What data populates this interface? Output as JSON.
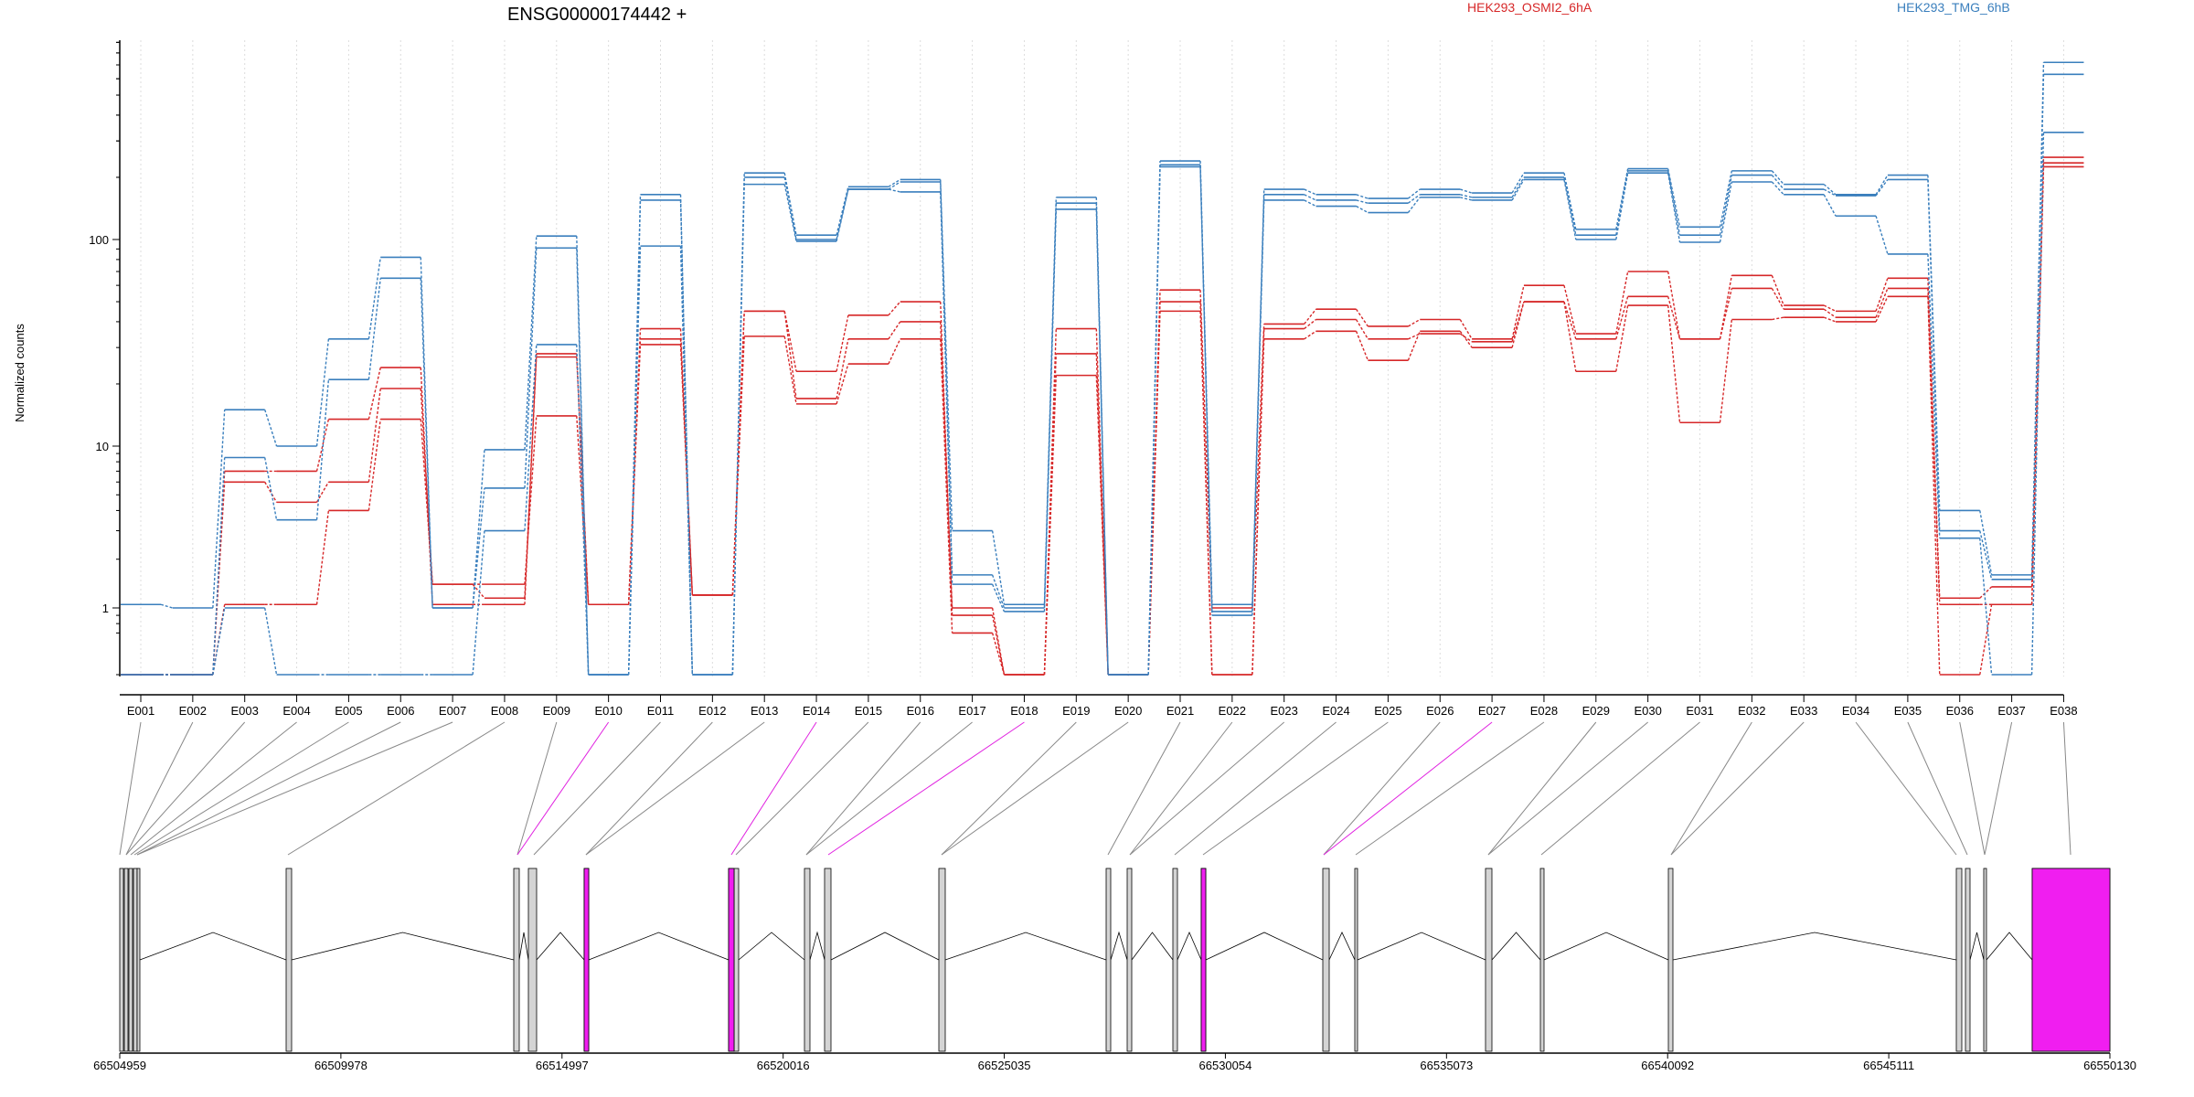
{
  "chart_data": {
    "type": "line",
    "title": "ENSG00000174442 +",
    "ylabel": "Normalized counts",
    "y_scale": "log",
    "ylim": [
      0.5,
      1000
    ],
    "y_ticks": [
      "1",
      "10",
      "100"
    ],
    "grid": "vertical dotted lines at exon centres",
    "legend": [
      {
        "label": "HEK293_OSMI2_6hA",
        "color": "#d62728",
        "placement": "top-center"
      },
      {
        "label": "HEK293_TMG_6hB",
        "color": "#3a7fbd",
        "placement": "top-right"
      }
    ],
    "categories": [
      "E001",
      "E002",
      "E003",
      "E004",
      "E005",
      "E006",
      "E007",
      "E008",
      "E009",
      "E010",
      "E011",
      "E012",
      "E013",
      "E014",
      "E015",
      "E016",
      "E017",
      "E018",
      "E019",
      "E020",
      "E021",
      "E022",
      "E023",
      "E024",
      "E025",
      "E026",
      "E027",
      "E028",
      "E029",
      "E030",
      "E031",
      "E032",
      "E033",
      "E034",
      "E035",
      "E036",
      "E037",
      "E038"
    ],
    "series": [
      {
        "group": "HEK293_OSMI2_6hA",
        "color": "#d62728",
        "values": [
          0.5,
          0.5,
          1.05,
          1.05,
          4,
          13.5,
          1.4,
          1.15,
          28,
          1.05,
          33,
          1.2,
          45,
          23,
          43,
          50,
          0.9,
          0.5,
          37,
          0.5,
          57,
          1.0,
          39,
          46,
          38,
          41,
          33,
          60,
          35,
          70,
          33,
          67,
          48,
          45,
          65,
          1.15,
          1.35,
          250
        ]
      },
      {
        "group": "HEK293_OSMI2_6hA",
        "color": "#d62728",
        "values": [
          0.5,
          0.5,
          7,
          7,
          13.5,
          24,
          1.05,
          1.05,
          27,
          1.05,
          37,
          1.2,
          45,
          17,
          33,
          40,
          1.0,
          0.5,
          28,
          0.5,
          50,
          0.5,
          37,
          41,
          33,
          35,
          32,
          50,
          33,
          53,
          33,
          58,
          46,
          42,
          58,
          1.05,
          1.05,
          235
        ]
      },
      {
        "group": "HEK293_OSMI2_6hA",
        "color": "#d62728",
        "values": [
          0.5,
          0.5,
          6,
          4.5,
          6,
          19,
          1.4,
          1.4,
          14,
          1.05,
          31,
          1.2,
          34,
          16,
          25,
          33,
          0.7,
          0.5,
          22,
          0.5,
          45,
          0.5,
          33,
          36,
          26,
          36,
          30,
          50,
          23,
          48,
          13,
          41,
          42,
          40,
          53,
          0.5,
          1.05,
          225
        ]
      },
      {
        "group": "HEK293_TMG_6hB",
        "color": "#3a7fbd",
        "values": [
          1.05,
          1.0,
          15,
          10,
          33,
          82,
          1.0,
          9.5,
          104,
          0.5,
          165,
          0.5,
          210,
          105,
          180,
          195,
          3.0,
          1.05,
          160,
          0.5,
          240,
          1.05,
          175,
          165,
          158,
          175,
          168,
          210,
          112,
          220,
          115,
          215,
          185,
          165,
          205,
          4.0,
          1.6,
          720
        ]
      },
      {
        "group": "HEK293_TMG_6hB",
        "color": "#3a7fbd",
        "values": [
          0.5,
          0.5,
          8.5,
          3.5,
          21,
          65,
          1.0,
          5.5,
          91,
          0.5,
          155,
          0.5,
          200,
          100,
          175,
          190,
          1.6,
          1.0,
          150,
          0.5,
          230,
          0.95,
          165,
          155,
          150,
          165,
          160,
          200,
          105,
          215,
          105,
          205,
          175,
          163,
          195,
          3.0,
          1.5,
          630
        ]
      },
      {
        "group": "HEK293_TMG_6hB",
        "color": "#3a7fbd",
        "values": [
          0.5,
          0.5,
          1.0,
          0.5,
          0.5,
          0.5,
          0.5,
          3.0,
          31,
          0.5,
          93,
          0.5,
          185,
          98,
          175,
          170,
          1.4,
          0.95,
          140,
          0.5,
          225,
          0.9,
          155,
          145,
          135,
          160,
          155,
          195,
          100,
          210,
          97,
          190,
          165,
          130,
          85,
          2.7,
          0.5,
          330
        ]
      }
    ],
    "gene_model": {
      "coord_ticks": [
        "66504959",
        "66509978",
        "66514997",
        "66520016",
        "66525035",
        "66530054",
        "66535073",
        "66540092",
        "66545111",
        "66550130"
      ],
      "highlighted_exons": [
        "E010",
        "E014",
        "E027",
        "E038"
      ]
    }
  }
}
